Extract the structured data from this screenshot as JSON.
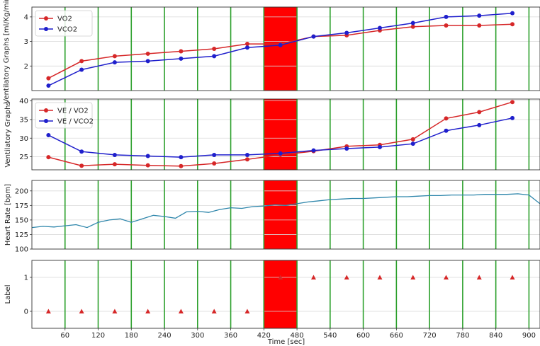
{
  "figure": {
    "xlabel": "Time [sec]",
    "xlim": [
      0,
      920
    ],
    "xticks": [
      60,
      120,
      180,
      240,
      300,
      360,
      420,
      480,
      540,
      600,
      660,
      720,
      780,
      840,
      900
    ],
    "green_lines": [
      60,
      120,
      180,
      240,
      300,
      360,
      420,
      480,
      540,
      600,
      660,
      720,
      780,
      840,
      900
    ],
    "highlight": {
      "x0": 420,
      "x1": 480,
      "color": "#ff0000"
    },
    "colors": {
      "red": "#d62728",
      "blue": "#1f1fcc",
      "hr": "#2e86ab",
      "green": "#2ca02c",
      "marker": "#d62728"
    }
  },
  "chart_data": [
    {
      "type": "line",
      "ylabel": "Ventilatory Graphs [ml/Kg/min]",
      "ylim": [
        1,
        4.4
      ],
      "yticks": [
        2,
        3,
        4
      ],
      "grid": true,
      "legend": "top-left",
      "x": [
        30,
        90,
        150,
        210,
        270,
        330,
        390,
        450,
        510,
        570,
        630,
        690,
        750,
        810,
        870
      ],
      "series": [
        {
          "name": "VO2",
          "color": "red",
          "values": [
            1.5,
            2.2,
            2.4,
            2.5,
            2.6,
            2.7,
            2.9,
            2.9,
            3.2,
            3.25,
            3.45,
            3.6,
            3.65,
            3.65,
            3.7
          ]
        },
        {
          "name": "VCO2",
          "color": "blue",
          "values": [
            1.2,
            1.85,
            2.15,
            2.2,
            2.3,
            2.4,
            2.75,
            2.85,
            3.2,
            3.35,
            3.55,
            3.75,
            4.0,
            4.05,
            4.15
          ]
        }
      ]
    },
    {
      "type": "line",
      "ylabel": "Ventilatory Graphs",
      "ylim": [
        21.5,
        40.5
      ],
      "yticks": [
        25,
        30,
        35,
        40
      ],
      "grid": true,
      "legend": "top-left",
      "x": [
        30,
        90,
        150,
        210,
        270,
        330,
        390,
        450,
        510,
        570,
        630,
        690,
        750,
        810,
        870
      ],
      "series": [
        {
          "name": "VE / VO2",
          "color": "red",
          "values": [
            24.9,
            22.6,
            23.0,
            22.7,
            22.5,
            23.2,
            24.3,
            25.5,
            26.5,
            27.8,
            28.2,
            29.7,
            35.3,
            37.0,
            39.7
          ]
        },
        {
          "name": "VE / VCO2",
          "color": "blue",
          "values": [
            30.8,
            26.4,
            25.5,
            25.2,
            24.9,
            25.5,
            25.5,
            25.9,
            26.7,
            27.2,
            27.6,
            28.5,
            32.0,
            33.5,
            35.4
          ]
        }
      ]
    },
    {
      "type": "line",
      "ylabel": "Heart Rate [bpm]",
      "ylim": [
        100,
        218
      ],
      "yticks": [
        100,
        125,
        150,
        175,
        200
      ],
      "grid": true,
      "x": [
        0,
        20,
        40,
        60,
        80,
        100,
        120,
        140,
        160,
        180,
        200,
        220,
        240,
        260,
        280,
        300,
        320,
        340,
        360,
        380,
        400,
        420,
        440,
        460,
        480,
        500,
        520,
        540,
        560,
        580,
        600,
        620,
        640,
        660,
        680,
        700,
        720,
        740,
        760,
        780,
        800,
        820,
        840,
        860,
        880,
        900,
        920
      ],
      "series": [
        {
          "name": "",
          "color": "hr",
          "values": [
            137,
            139,
            138,
            140,
            142,
            137,
            146,
            150,
            152,
            146,
            152,
            158,
            156,
            153,
            164,
            165,
            163,
            168,
            171,
            170,
            173,
            174,
            176,
            175,
            178,
            181,
            183,
            185,
            186,
            187,
            187,
            188,
            189,
            190,
            190,
            191,
            192,
            192,
            193,
            193,
            193,
            194,
            194,
            194,
            195,
            193,
            178
          ]
        }
      ]
    },
    {
      "type": "scatter",
      "ylabel": "Label",
      "ylim": [
        -0.5,
        1.5
      ],
      "yticks": [
        0,
        1
      ],
      "grid": true,
      "x": [
        30,
        90,
        150,
        210,
        270,
        330,
        390,
        450,
        510,
        570,
        630,
        690,
        750,
        810,
        870
      ],
      "series": [
        {
          "name": "",
          "color": "marker",
          "values": [
            0,
            0,
            0,
            0,
            0,
            0,
            0,
            1,
            1,
            1,
            1,
            1,
            1,
            1,
            1
          ]
        }
      ]
    }
  ]
}
